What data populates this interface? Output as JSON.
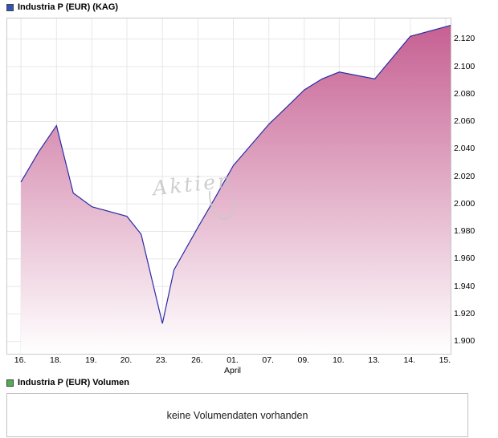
{
  "legend_top": {
    "label": "Industria P (EUR) (KAG)",
    "color": "#3353b8"
  },
  "legend_volume": {
    "label": "Industria P (EUR) Volumen",
    "color": "#4fae4f"
  },
  "watermark_text": "Aktien",
  "volume_message": "keine Volumendaten vorhanden",
  "chart_data": {
    "type": "area",
    "title": "Industria P (EUR) (KAG)",
    "xlabel": "",
    "ylabel": "",
    "y_axis_side": "right",
    "grid": true,
    "ylim": [
      1.891,
      2.135
    ],
    "line_color": "#2b2ba8",
    "fill_gradient": [
      "#c55d90",
      "#ffffff"
    ],
    "y_ticks": [
      {
        "label": "2.120",
        "v": 2.12
      },
      {
        "label": "2.100",
        "v": 2.1
      },
      {
        "label": "2.080",
        "v": 2.08
      },
      {
        "label": "2.060",
        "v": 2.06
      },
      {
        "label": "2.040",
        "v": 2.04
      },
      {
        "label": "2.020",
        "v": 2.02
      },
      {
        "label": "2.000",
        "v": 2.0
      },
      {
        "label": "1.980",
        "v": 1.98
      },
      {
        "label": "1.960",
        "v": 1.96
      },
      {
        "label": "1.940",
        "v": 1.94
      },
      {
        "label": "1.920",
        "v": 1.92
      },
      {
        "label": "1.900",
        "v": 1.9
      }
    ],
    "x_ticks": [
      {
        "label": "16.",
        "f": 0.031
      },
      {
        "label": "18.",
        "f": 0.111
      },
      {
        "label": "19.",
        "f": 0.191
      },
      {
        "label": "20.",
        "f": 0.27
      },
      {
        "label": "23.",
        "f": 0.35
      },
      {
        "label": "26.",
        "f": 0.43
      },
      {
        "label": "01.",
        "f": 0.51,
        "sub": "April"
      },
      {
        "label": "07.",
        "f": 0.59
      },
      {
        "label": "09.",
        "f": 0.67
      },
      {
        "label": "10.",
        "f": 0.749
      },
      {
        "label": "13.",
        "f": 0.829
      },
      {
        "label": "14.",
        "f": 0.909
      },
      {
        "label": "15.",
        "f": 0.989
      }
    ],
    "series": [
      {
        "f": 0.031,
        "v": 2.016
      },
      {
        "f": 0.071,
        "v": 2.038
      },
      {
        "f": 0.111,
        "v": 2.057
      },
      {
        "f": 0.149,
        "v": 2.008
      },
      {
        "f": 0.191,
        "v": 1.998
      },
      {
        "f": 0.27,
        "v": 1.991
      },
      {
        "f": 0.302,
        "v": 1.978
      },
      {
        "f": 0.35,
        "v": 1.913
      },
      {
        "f": 0.376,
        "v": 1.952
      },
      {
        "f": 0.43,
        "v": 1.983
      },
      {
        "f": 0.468,
        "v": 2.004
      },
      {
        "f": 0.51,
        "v": 2.028
      },
      {
        "f": 0.59,
        "v": 2.058
      },
      {
        "f": 0.632,
        "v": 2.071
      },
      {
        "f": 0.67,
        "v": 2.083
      },
      {
        "f": 0.71,
        "v": 2.091
      },
      {
        "f": 0.749,
        "v": 2.096
      },
      {
        "f": 0.829,
        "v": 2.091
      },
      {
        "f": 0.909,
        "v": 2.122
      },
      {
        "f": 0.989,
        "v": 2.129
      },
      {
        "f": 1.0,
        "v": 2.13
      }
    ]
  }
}
